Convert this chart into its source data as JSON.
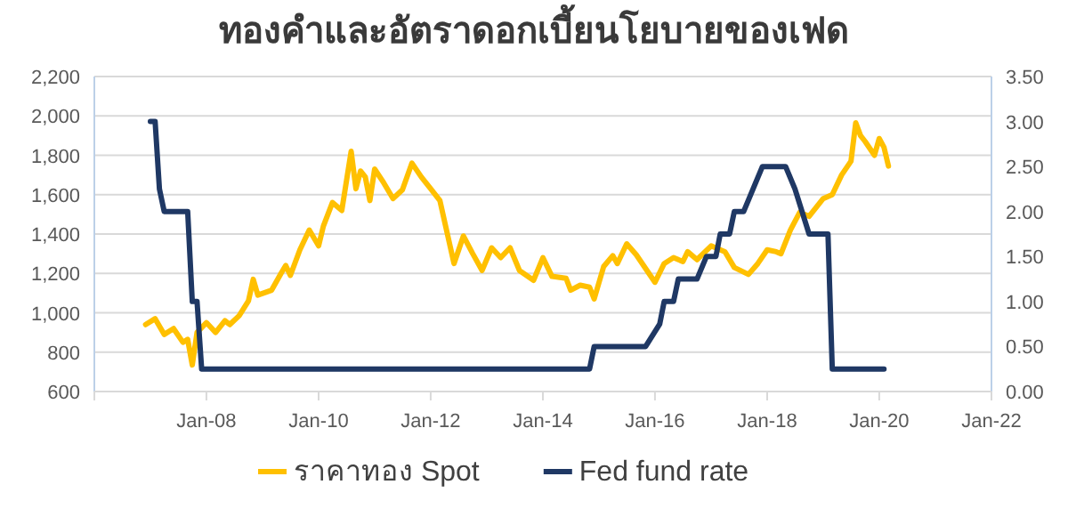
{
  "chart_data": {
    "type": "line",
    "title": "ทองคำและอัตราดอกเบี้ยนโยบายของเฟด",
    "xlim": [
      "2006-01",
      "2022-01"
    ],
    "xticks": [
      {
        "value": "2006-01",
        "label": null
      },
      {
        "value": "2008-01",
        "label": "Jan-08"
      },
      {
        "value": "2010-01",
        "label": "Jan-10"
      },
      {
        "value": "2012-01",
        "label": "Jan-12"
      },
      {
        "value": "2014-01",
        "label": "Jan-14"
      },
      {
        "value": "2016-01",
        "label": "Jan-16"
      },
      {
        "value": "2018-01",
        "label": "Jan-18"
      },
      {
        "value": "2020-01",
        "label": "Jan-20"
      },
      {
        "value": "2022-01",
        "label": "Jan-22"
      }
    ],
    "ylim": [
      600,
      2200
    ],
    "yticks": [
      600,
      800,
      {
        "value": 1000,
        "label": "1,000"
      },
      {
        "value": 1200,
        "label": "1,200"
      },
      {
        "value": 1400,
        "label": "1,400"
      },
      {
        "value": 1600,
        "label": "1,600"
      },
      {
        "value": 1800,
        "label": "1,800"
      },
      {
        "value": 2000,
        "label": "2,000"
      },
      {
        "value": 2200,
        "label": "2,200"
      }
    ],
    "y2lim": [
      0,
      3.5
    ],
    "y2ticks": [
      {
        "value": 0,
        "label": "0.00"
      },
      {
        "value": 0.5,
        "label": "0.50"
      },
      {
        "value": 1,
        "label": "1.00"
      },
      {
        "value": 1.5,
        "label": "1.50"
      },
      {
        "value": 2,
        "label": "2.00"
      },
      {
        "value": 2.5,
        "label": "2.50"
      },
      {
        "value": 3,
        "label": "3.00"
      },
      {
        "value": 3.5,
        "label": "3.50"
      }
    ],
    "grid": "y",
    "legend": "bottom",
    "marker": "none",
    "line_style": "solid",
    "series": [
      {
        "name": "ราคาทอง Spot",
        "color": "#ffc000",
        "x": [
          "2006-12",
          "2007-02",
          "2007-04",
          "2007-06",
          "2007-08",
          "2007-09",
          "2007-10",
          "2007-11",
          "2008-01",
          "2008-03",
          "2008-05",
          "2008-06",
          "2008-08",
          "2008-10",
          "2008-11",
          "2008-12",
          "2009-03",
          "2009-05",
          "2009-06",
          "2009-07",
          "2009-09",
          "2009-11",
          "2010-01",
          "2010-02",
          "2010-04",
          "2010-06",
          "2010-08",
          "2010-09",
          "2010-10",
          "2010-11",
          "2010-12",
          "2011-01",
          "2011-03",
          "2011-05",
          "2011-07",
          "2011-09",
          "2011-11",
          "2012-01",
          "2012-03",
          "2012-06",
          "2012-08",
          "2012-10",
          "2012-12",
          "2013-02",
          "2013-04",
          "2013-06",
          "2013-08",
          "2013-11",
          "2014-01",
          "2014-03",
          "2014-06",
          "2014-07",
          "2014-09",
          "2014-11",
          "2014-12",
          "2015-02",
          "2015-04",
          "2015-05",
          "2015-07",
          "2015-09",
          "2016-01",
          "2016-03",
          "2016-05",
          "2016-07",
          "2016-08",
          "2016-10",
          "2017-01",
          "2017-04",
          "2017-06",
          "2017-09",
          "2017-11",
          "2018-01",
          "2018-03",
          "2018-04",
          "2018-06",
          "2018-08",
          "2018-10",
          "2019-01",
          "2019-03",
          "2019-05",
          "2019-07",
          "2019-08",
          "2019-09",
          "2019-10",
          "2019-12",
          "2020-01",
          "2020-02",
          "2020-03"
        ],
        "values": [
          940,
          970,
          890,
          920,
          850,
          865,
          735,
          900,
          950,
          900,
          960,
          940,
          985,
          1060,
          1170,
          1090,
          1115,
          1200,
          1240,
          1190,
          1320,
          1420,
          1340,
          1440,
          1560,
          1520,
          1820,
          1630,
          1720,
          1690,
          1570,
          1730,
          1660,
          1580,
          1625,
          1760,
          1690,
          1630,
          1570,
          1250,
          1390,
          1300,
          1215,
          1330,
          1280,
          1330,
          1215,
          1165,
          1280,
          1185,
          1175,
          1115,
          1140,
          1130,
          1070,
          1235,
          1290,
          1250,
          1350,
          1295,
          1155,
          1250,
          1280,
          1260,
          1310,
          1270,
          1340,
          1310,
          1230,
          1195,
          1250,
          1320,
          1310,
          1300,
          1420,
          1510,
          1490,
          1580,
          1600,
          1700,
          1770,
          1965,
          1900,
          1870,
          1800,
          1885,
          1840,
          1745
        ]
      },
      {
        "name": "Fed fund rate",
        "color": "#1f3864",
        "axis": "y2",
        "x": [
          "2007-01",
          "2007-02",
          "2007-03",
          "2007-04",
          "2007-09",
          "2007-10",
          "2007-11",
          "2007-12",
          "2014-11",
          "2014-12",
          "2015-11",
          "2016-02",
          "2016-03",
          "2016-05",
          "2016-06",
          "2016-10",
          "2016-12",
          "2017-02",
          "2017-03",
          "2017-05",
          "2017-06",
          "2017-08",
          "2017-10",
          "2017-12",
          "2018-05",
          "2018-07",
          "2018-10",
          "2019-02",
          "2019-03",
          "2020-02"
        ],
        "values": [
          3,
          3,
          2.25,
          2,
          2,
          1,
          1,
          0.25,
          0.25,
          0.5,
          0.5,
          0.75,
          1,
          1,
          1.25,
          1.25,
          1.5,
          1.5,
          1.75,
          1.75,
          2,
          2,
          2.25,
          2.5,
          2.5,
          2.25,
          1.75,
          1.75,
          0.25,
          0.25
        ]
      }
    ]
  }
}
